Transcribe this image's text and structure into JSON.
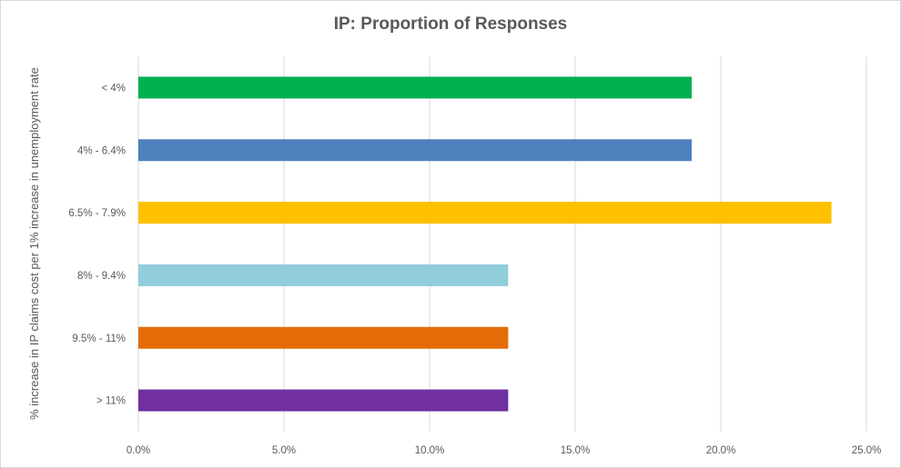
{
  "chart_data": {
    "type": "bar",
    "orientation": "horizontal",
    "title": "IP: Proportion of Responses",
    "xlabel": "",
    "ylabel": "% increase in IP claims cost per 1% increase in unemployment rate",
    "categories": [
      "< 4%",
      "4% - 6.4%",
      "6.5% - 7.9%",
      "8% - 9.4%",
      "9.5% - 11%",
      "> 11%"
    ],
    "values": [
      19.0,
      19.0,
      23.8,
      12.7,
      12.7,
      12.7
    ],
    "colors": [
      "#00b050",
      "#4f81bd",
      "#ffc000",
      "#92cddc",
      "#e36c09",
      "#7030a0"
    ],
    "xlim": [
      0,
      25
    ],
    "xticks": [
      "0.0%",
      "5.0%",
      "10.0%",
      "15.0%",
      "20.0%",
      "25.0%"
    ],
    "grid": true,
    "legend": "none"
  }
}
